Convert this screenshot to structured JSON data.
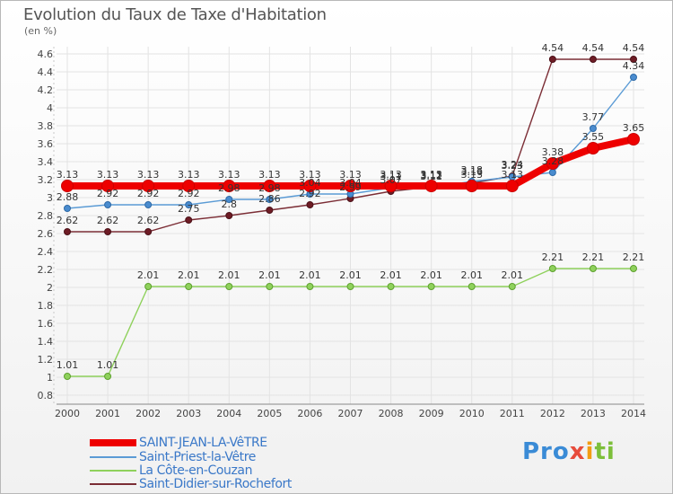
{
  "chart_data": {
    "type": "line",
    "title": "Evolution du Taux de Taxe d'Habitation",
    "ylabel": "(en %)",
    "xlabel": "",
    "ylim": [
      0.8,
      4.6
    ],
    "yticks": [
      "0.8",
      "1",
      "1.2",
      "1.4",
      "1.6",
      "1.8",
      "2",
      "2.2",
      "2.4",
      "2.6",
      "2.8",
      "3",
      "3.2",
      "3.4",
      "3.6",
      "3.8",
      "4",
      "4.2",
      "4.4",
      "4.6"
    ],
    "categories": [
      "2000",
      "2001",
      "2002",
      "2003",
      "2004",
      "2005",
      "2006",
      "2007",
      "2008",
      "2009",
      "2010",
      "2011",
      "2012",
      "2013",
      "2014"
    ],
    "series": [
      {
        "name": "SAINT-JEAN-LA-VêTRE",
        "color": "#ee0000",
        "values": [
          3.13,
          3.13,
          3.13,
          3.13,
          3.13,
          3.13,
          3.13,
          3.13,
          3.13,
          3.13,
          3.13,
          3.13,
          3.38,
          3.55,
          3.65
        ],
        "labels": [
          "3.13",
          "3.13",
          "3.13",
          "3.13",
          "3.13",
          "3.13",
          "3.13",
          "3.13",
          "3.13",
          "3.13",
          "3.13",
          "3.13",
          "3.38",
          "3.55",
          "3.65"
        ]
      },
      {
        "name": "Saint-Priest-la-Vêtre",
        "color": "#5b9bd5",
        "values": [
          2.88,
          2.92,
          2.92,
          2.92,
          2.98,
          2.98,
          3.04,
          3.04,
          3.11,
          3.11,
          3.18,
          3.23,
          3.28,
          3.77,
          4.34
        ],
        "labels": [
          "2.88",
          "2.92",
          "2.92",
          "2.92",
          "2.98",
          "2.98",
          "3.04",
          "3.04",
          "3.11",
          "3.11",
          "3.18",
          "3.23",
          "3.28",
          "3.77",
          "4.34"
        ]
      },
      {
        "name": "La Côte-en-Couzan",
        "color": "#8fd15c",
        "values": [
          1.01,
          1.01,
          2.01,
          2.01,
          2.01,
          2.01,
          2.01,
          2.01,
          2.01,
          2.01,
          2.01,
          2.01,
          2.21,
          2.21,
          2.21
        ],
        "labels": [
          "1.01",
          "1.01",
          "2.01",
          "2.01",
          "2.01",
          "2.01",
          "2.01",
          "2.01",
          "2.01",
          "2.01",
          "2.01",
          "2.01",
          "2.21",
          "2.21",
          "2.21"
        ]
      },
      {
        "name": "Saint-Didier-sur-Rochefort",
        "color": "#7b2d35",
        "values": [
          2.62,
          2.62,
          2.62,
          2.75,
          2.8,
          2.86,
          2.92,
          2.99,
          3.07,
          3.12,
          3.16,
          3.24,
          4.54,
          4.54,
          4.54
        ],
        "labels": [
          "2.62",
          "2.62",
          "2.62",
          "2.75",
          "2.8",
          "2.86",
          "2.92",
          "2.99",
          "3.07",
          "3.12",
          "3.16",
          "3.24",
          "4.54",
          "4.54",
          "4.54"
        ]
      }
    ]
  },
  "logo": {
    "p1": "Pro",
    "p2": "x",
    "p3": "i",
    "p4": "ti"
  }
}
